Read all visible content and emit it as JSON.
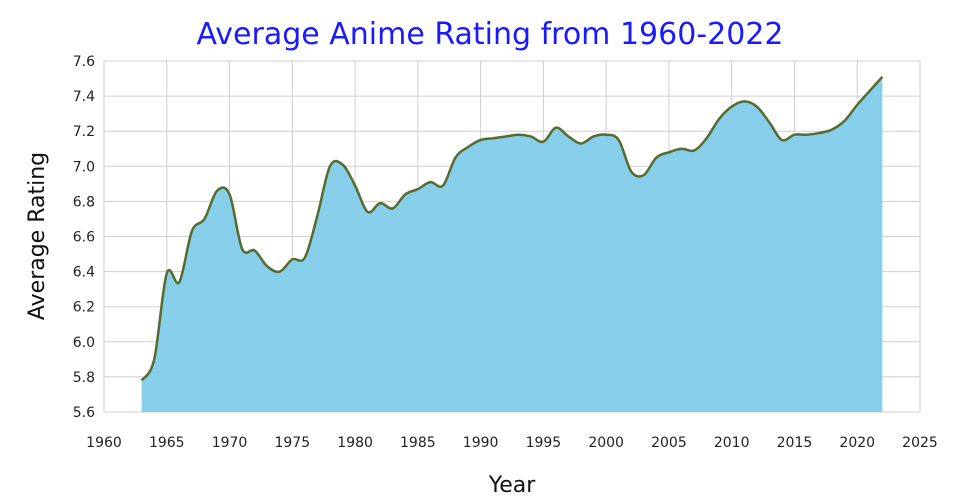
{
  "chart_data": {
    "type": "area",
    "title": "Average Anime Rating from 1960-2022",
    "xlabel": "Year",
    "ylabel": "Average Rating",
    "xlim": [
      1960,
      2025
    ],
    "ylim": [
      5.6,
      7.6
    ],
    "xticks": [
      1960,
      1965,
      1970,
      1975,
      1980,
      1985,
      1990,
      1995,
      2000,
      2005,
      2010,
      2015,
      2020,
      2025
    ],
    "yticks": [
      "5.6",
      "5.8",
      "6.0",
      "6.2",
      "6.4",
      "6.6",
      "6.8",
      "7.0",
      "7.2",
      "7.4",
      "7.6"
    ],
    "grid": true,
    "colors": {
      "fill": "#87ceeb",
      "line": "#556b2f",
      "title": "#1a1aff"
    },
    "series": [
      {
        "name": "Average Rating",
        "x": [
          1963,
          1964,
          1965,
          1966,
          1967,
          1968,
          1969,
          1970,
          1971,
          1972,
          1973,
          1974,
          1975,
          1976,
          1977,
          1978,
          1979,
          1980,
          1981,
          1982,
          1983,
          1984,
          1985,
          1986,
          1987,
          1988,
          1989,
          1990,
          1991,
          1992,
          1993,
          1994,
          1995,
          1996,
          1997,
          1998,
          1999,
          2000,
          2001,
          2002,
          2003,
          2004,
          2005,
          2006,
          2007,
          2008,
          2009,
          2010,
          2011,
          2012,
          2013,
          2014,
          2015,
          2016,
          2017,
          2018,
          2019,
          2020,
          2021,
          2022
        ],
        "values": [
          5.78,
          5.9,
          6.39,
          6.34,
          6.63,
          6.7,
          6.86,
          6.84,
          6.53,
          6.52,
          6.43,
          6.4,
          6.47,
          6.48,
          6.72,
          7.0,
          7.01,
          6.89,
          6.74,
          6.79,
          6.76,
          6.84,
          6.87,
          6.91,
          6.89,
          7.05,
          7.11,
          7.15,
          7.16,
          7.17,
          7.18,
          7.17,
          7.14,
          7.22,
          7.17,
          7.13,
          7.17,
          7.18,
          7.15,
          6.97,
          6.95,
          7.05,
          7.08,
          7.1,
          7.09,
          7.16,
          7.27,
          7.34,
          7.37,
          7.34,
          7.25,
          7.15,
          7.18,
          7.18,
          7.19,
          7.21,
          7.26,
          7.35,
          7.43,
          7.51
        ]
      }
    ]
  }
}
